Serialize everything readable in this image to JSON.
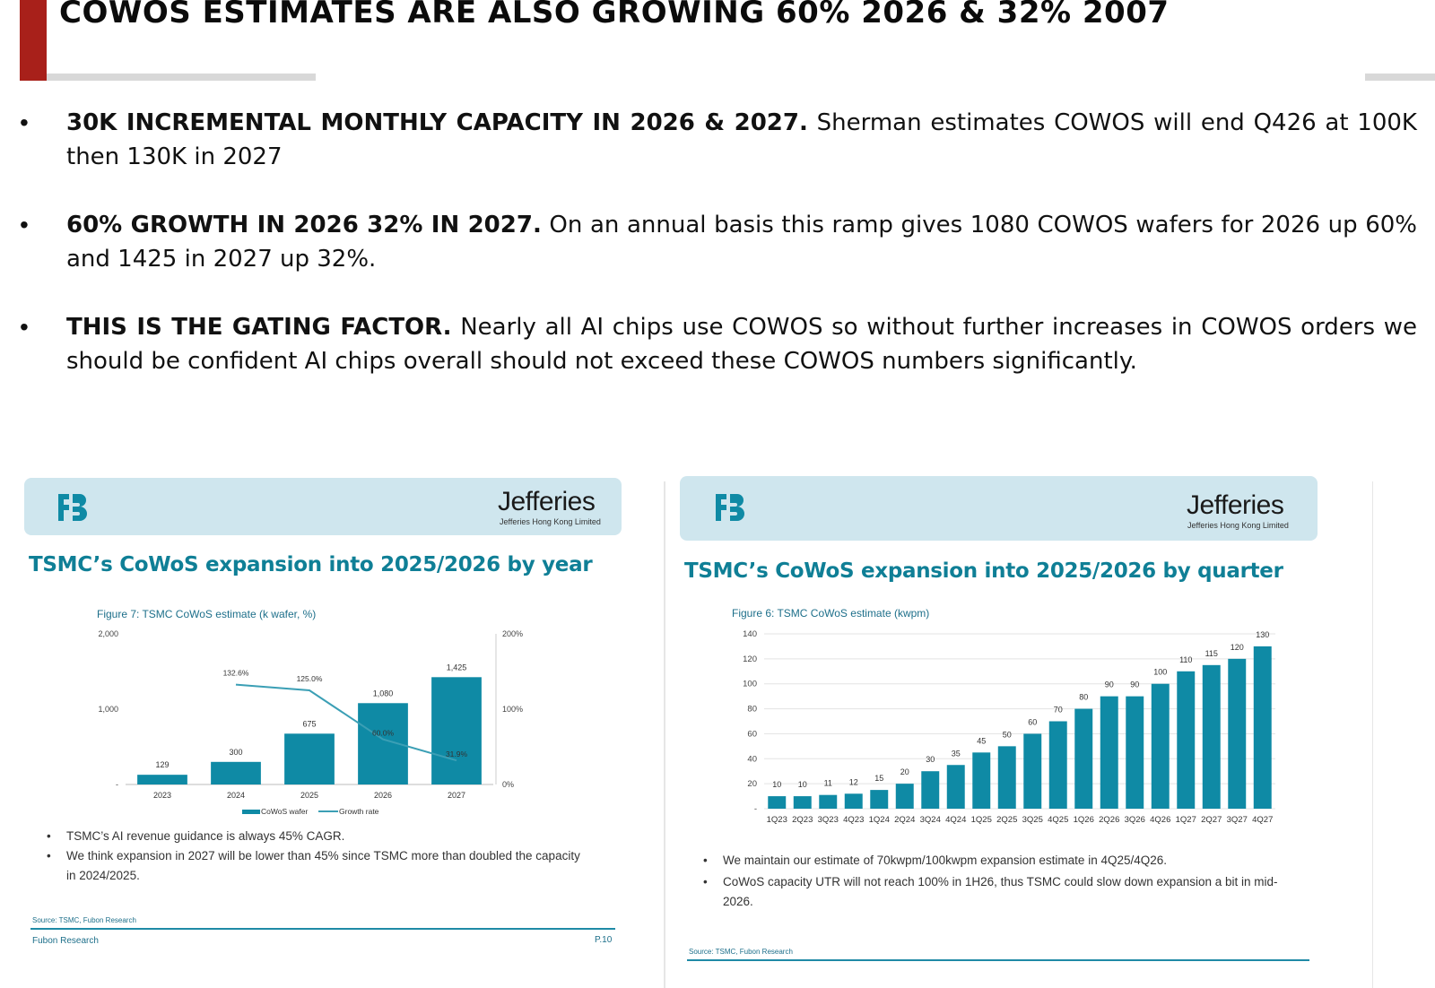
{
  "slide": {
    "title": "COWOS ESTIMATES ARE ALSO GROWING 60% 2026 & 32% 2007",
    "accent_color": "#a8201a",
    "bullets": [
      {
        "lead": "30K INCREMENTAL MONTHLY CAPACITY IN 2026 & 2027.",
        "text": " Sherman estimates COWOS will end Q426 at 100K then 130K in 2027"
      },
      {
        "lead": "60% GROWTH IN 2026 32% IN 2027.",
        "text": " On an annual basis this ramp gives 1080 COWOS wafers for 2026 up 60% and 1425 in 2027 up 32%."
      },
      {
        "lead": "THIS IS THE GATING FACTOR.",
        "text": " Nearly all AI chips use COWOS so without further increases in COWOS orders we should be confident AI chips overall should not exceed these COWOS numbers significantly."
      }
    ]
  },
  "left_panel": {
    "brand": "Jefferies",
    "brand_sub": "Jefferies Hong Kong Limited",
    "logo_icon": "fubon-logo-icon",
    "title": "TSMC’s CoWoS expansion into 2025/2026 by year",
    "figure_caption": "Figure 7: TSMC CoWoS estimate (k wafer, %)",
    "notes": [
      "TSMC’s AI revenue guidance is always 45% CAGR.",
      "We think expansion in 2027 will be lower than 45% since TSMC more than doubled the capacity in 2024/2025."
    ],
    "source": "Source: TSMC, Fubon Research",
    "footer_left": "Fubon Research",
    "footer_right": "P.10"
  },
  "right_panel": {
    "brand": "Jefferies",
    "brand_sub": "Jefferies Hong Kong Limited",
    "logo_icon": "fubon-logo-icon",
    "title": "TSMC’s CoWoS expansion into 2025/2026 by quarter",
    "figure_caption": "Figure 6: TSMC CoWoS estimate (kwpm)",
    "notes": [
      "We maintain our estimate of 70kwpm/100kwpm expansion estimate in 4Q25/4Q26.",
      "CoWoS capacity UTR will not reach 100% in 1H26, thus TSMC could slow down expansion a bit in mid-2026."
    ],
    "source": "Source: TSMC, Fubon Research"
  },
  "chart_data": [
    {
      "type": "bar",
      "title": "Figure 7: TSMC CoWoS estimate (k wafer, %)",
      "categories": [
        "2023",
        "2024",
        "2025",
        "2026",
        "2027"
      ],
      "series": [
        {
          "name": "CoWoS wafer",
          "type": "bar",
          "axis": "left",
          "values": [
            129,
            300,
            675,
            1080,
            1425
          ],
          "labels": [
            "129",
            "300",
            "675",
            "1,080",
            "1,425"
          ]
        },
        {
          "name": "Growth rate",
          "type": "line",
          "axis": "right",
          "values": [
            null,
            132.6,
            125.0,
            60.0,
            31.9
          ],
          "labels": [
            "",
            "132.6%",
            "125.0%",
            "60.0%",
            "31.9%"
          ]
        }
      ],
      "y_left": {
        "ticks": [
          "-",
          "1,000",
          "2,000"
        ],
        "ylim": [
          0,
          2000
        ]
      },
      "y_right": {
        "ticks": [
          "0%",
          "100%",
          "200%"
        ],
        "ylim": [
          0,
          200
        ]
      },
      "colors": {
        "bar": "#0f8aa5",
        "line": "#3b9fb5"
      },
      "legend": "bottom"
    },
    {
      "type": "bar",
      "title": "Figure 6: TSMC CoWoS estimate (kwpm)",
      "categories": [
        "1Q23",
        "2Q23",
        "3Q23",
        "4Q23",
        "1Q24",
        "2Q24",
        "3Q24",
        "4Q24",
        "1Q25",
        "2Q25",
        "3Q25",
        "4Q25",
        "1Q26",
        "2Q26",
        "3Q26",
        "4Q26",
        "1Q27",
        "2Q27",
        "3Q27",
        "4Q27"
      ],
      "values": [
        10,
        10,
        11,
        12,
        15,
        20,
        30,
        35,
        45,
        50,
        60,
        70,
        80,
        90,
        90,
        100,
        110,
        115,
        120,
        130
      ],
      "y_ticks": [
        "-",
        "20",
        "40",
        "60",
        "80",
        "100",
        "120",
        "140"
      ],
      "ylim": [
        0,
        140
      ],
      "colors": {
        "bar": "#0f8aa5"
      }
    }
  ]
}
